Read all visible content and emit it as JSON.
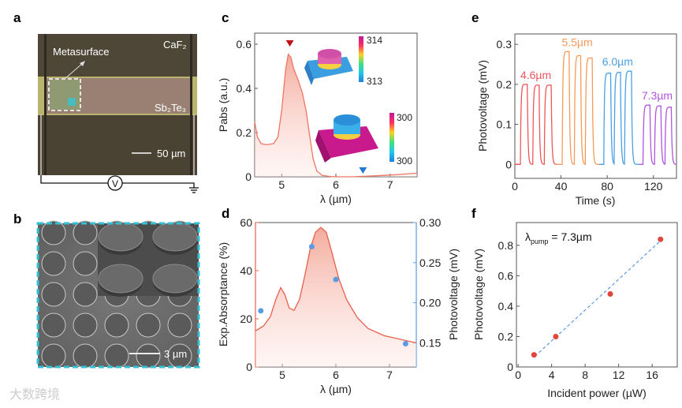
{
  "panel_labels": {
    "a": "a",
    "b": "b",
    "c": "c",
    "d": "d",
    "e": "e",
    "f": "f"
  },
  "panel_a": {
    "metasurface_label": "Metasurface",
    "substrate_label": "CaF₂",
    "film_label": "Sb₂Te₃",
    "scale_bar": "50 µm",
    "voltmeter": "V",
    "colors": {
      "substrate": "#4a4333",
      "band": "#b9b46e",
      "film": "#9a8072",
      "highlight": "#34c6d6"
    }
  },
  "panel_b": {
    "scale_bar": "3 µm",
    "colors": {
      "background": "#6e6e6e",
      "frame": "#34c0d4"
    }
  },
  "watermark": "大数跨境",
  "chart_data": [
    {
      "id": "c",
      "type": "area",
      "xlabel": "λ (µm)",
      "ylabel": "Pabs (a.u.)",
      "xlim": [
        4.5,
        7.5
      ],
      "ylim": [
        0,
        0.65
      ],
      "xticks": [
        5,
        6,
        7
      ],
      "yticks": [
        0,
        0.2,
        0.4,
        0.6
      ],
      "xtick_labels": [
        "5",
        "6",
        "7"
      ],
      "ytick_labels": [
        "0",
        "0.2",
        "0.4",
        "0.6"
      ],
      "x": [
        4.5,
        4.55,
        4.62,
        4.72,
        4.85,
        4.93,
        5.0,
        5.07,
        5.12,
        5.17,
        5.22,
        5.3,
        5.38,
        5.45,
        5.52,
        5.58,
        5.65,
        5.75,
        5.9,
        6.0,
        6.3,
        6.6,
        7.0,
        7.5
      ],
      "y": [
        0.25,
        0.18,
        0.15,
        0.145,
        0.15,
        0.18,
        0.3,
        0.48,
        0.555,
        0.54,
        0.49,
        0.44,
        0.38,
        0.3,
        0.18,
        0.08,
        0.025,
        0.006,
        0.001,
        0,
        0,
        0.003,
        0.008,
        0.016
      ],
      "markers": [
        {
          "x": 5.15,
          "y": 0.6,
          "color": "#c0121a",
          "shape": "down-triangle"
        },
        {
          "x": 6.5,
          "y": 0.025,
          "color": "#1e7bd0",
          "shape": "down-triangle"
        }
      ],
      "insets": [
        {
          "colorbar_max": "314",
          "colorbar_min": "313"
        },
        {
          "colorbar_max": "300",
          "colorbar_min": "300"
        }
      ],
      "color": "#ee7763"
    },
    {
      "id": "d",
      "type": "line",
      "xlabel": "λ (µm)",
      "ylabel_left": "Exp.Absorptance (%)",
      "ylabel_right": "Photovoltage (mV)",
      "xlim": [
        4.5,
        7.5
      ],
      "ylim_left": [
        0,
        60
      ],
      "ylim_right": [
        0.12,
        0.3
      ],
      "xticks": [
        5,
        6,
        7
      ],
      "xtick_labels": [
        "5",
        "6",
        "7"
      ],
      "yticks_left": [
        0,
        20,
        40,
        60
      ],
      "ytick_labels_left": [
        "0",
        "20",
        "40",
        "60"
      ],
      "yticks_right": [
        0.15,
        0.2,
        0.25,
        0.3
      ],
      "ytick_labels_right": [
        "0.15",
        "0.20",
        "0.25",
        "0.30"
      ],
      "absorptance": {
        "x": [
          4.5,
          4.65,
          4.78,
          4.88,
          4.97,
          5.05,
          5.13,
          5.22,
          5.32,
          5.42,
          5.52,
          5.62,
          5.72,
          5.82,
          5.92,
          6.05,
          6.2,
          6.4,
          6.6,
          6.9,
          7.2,
          7.5
        ],
        "y": [
          15,
          17,
          21,
          28,
          33,
          30,
          24.5,
          23.5,
          28,
          38,
          49,
          56,
          58,
          56,
          48,
          37,
          28,
          20.5,
          16,
          13,
          11.5,
          10
        ]
      },
      "photovoltage": {
        "x": [
          4.6,
          5.55,
          6.0,
          7.3
        ],
        "y": [
          0.19,
          0.27,
          0.229,
          0.149
        ]
      },
      "colors": {
        "left": "#e8604c",
        "right": "#5b9be4"
      }
    },
    {
      "id": "e",
      "type": "line",
      "xlabel": "Time (s)",
      "ylabel": "Photovoltage (mV)",
      "xlim": [
        0,
        140
      ],
      "ylim": [
        -0.035,
        0.326
      ],
      "xticks": [
        0,
        40,
        80,
        120
      ],
      "xtick_labels": [
        "0",
        "40",
        "80",
        "120"
      ],
      "yticks": [
        0,
        0.1,
        0.2,
        0.3
      ],
      "ytick_labels": [
        "0",
        "0.1",
        "0.2",
        "0.3"
      ],
      "series": [
        {
          "name": "4.6µm",
          "color": "#f0545a",
          "range": [
            0,
            36
          ],
          "pulses": [
            {
              "start": 4.8,
              "dur": 6,
              "level": 0.2
            },
            {
              "start": 15.5,
              "dur": 5.5,
              "level": 0.198
            },
            {
              "start": 25.5,
              "dur": 6,
              "level": 0.198
            }
          ]
        },
        {
          "name": "5.5µm",
          "color": "#f59a58",
          "range": [
            36,
            73
          ],
          "pulses": [
            {
              "start": 41,
              "dur": 6,
              "level": 0.282
            },
            {
              "start": 51.5,
              "dur": 5.5,
              "level": 0.272
            },
            {
              "start": 61,
              "dur": 6,
              "level": 0.266
            }
          ]
        },
        {
          "name": "6.0µm",
          "color": "#4a9fe6",
          "range": [
            73,
            108
          ],
          "pulses": [
            {
              "start": 77,
              "dur": 6,
              "level": 0.228
            },
            {
              "start": 86,
              "dur": 5.5,
              "level": 0.23
            },
            {
              "start": 95,
              "dur": 6,
              "level": 0.233
            }
          ]
        },
        {
          "name": "7.3µm",
          "color": "#b054e0",
          "range": [
            108,
            140
          ],
          "pulses": [
            {
              "start": 111,
              "dur": 6,
              "level": 0.148
            },
            {
              "start": 121,
              "dur": 5.5,
              "level": 0.146
            },
            {
              "start": 130,
              "dur": 5.5,
              "level": 0.143
            }
          ]
        }
      ]
    },
    {
      "id": "f",
      "type": "scatter",
      "xlabel": "Incident power (µW)",
      "ylabel": "Photovoltage (mV)",
      "annotation": "λ",
      "annotation_sub": "pump",
      "annotation_rest": " = 7.3µm",
      "xlim": [
        -0.2,
        19
      ],
      "ylim": [
        0,
        0.95
      ],
      "xticks": [
        0,
        4,
        8,
        12,
        16
      ],
      "xtick_labels": [
        "0",
        "4",
        "8",
        "12",
        "16"
      ],
      "yticks": [
        0,
        0.2,
        0.4,
        0.6,
        0.8
      ],
      "ytick_labels": [
        "0",
        "0.2",
        "0.4",
        "0.6",
        "0.8"
      ],
      "x": [
        1.9,
        4.5,
        11,
        17
      ],
      "y": [
        0.08,
        0.2,
        0.48,
        0.84
      ],
      "fit": {
        "x": [
          2,
          17
        ],
        "y": [
          0.07,
          0.83
        ]
      },
      "colors": {
        "points": "#e0463a",
        "fit": "#5b9be4"
      }
    }
  ]
}
